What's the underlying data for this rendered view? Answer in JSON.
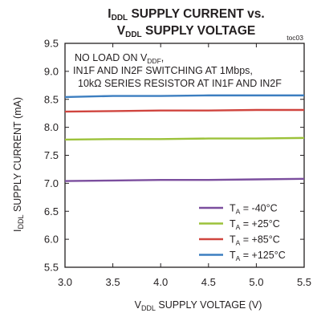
{
  "chart_data": {
    "type": "line",
    "title_line1": {
      "symbol": "I",
      "subscript": "DDL",
      "text": " SUPPLY CURRENT vs."
    },
    "title_line2": {
      "symbol": "V",
      "subscript": "DDL",
      "text": " SUPPLY VOLTAGE"
    },
    "figure_tag": "toc03",
    "xlabel": {
      "symbol": "V",
      "subscript": "DDL",
      "text": " SUPPLY VOLTAGE (V)"
    },
    "ylabel": {
      "symbol": "I",
      "subscript": "DDL",
      "text": " SUPPLY CURRENT (mA)"
    },
    "xlim": [
      3.0,
      5.5
    ],
    "ylim": [
      5.5,
      9.5
    ],
    "xticks": [
      3.0,
      3.5,
      4.0,
      4.5,
      5.0,
      5.5
    ],
    "xtick_labels": [
      "3.0",
      "3.5",
      "4.0",
      "4.5",
      "5.0",
      "5.5"
    ],
    "yticks": [
      5.5,
      6.0,
      6.5,
      7.0,
      7.5,
      8.0,
      8.5,
      9.0,
      9.5
    ],
    "ytick_labels": [
      "5.5",
      "6.0",
      "6.5",
      "7.0",
      "7.5",
      "8.0",
      "8.5",
      "9.0",
      "9.5"
    ],
    "grid": false,
    "legend_position": "bottom-right",
    "annotation": {
      "line1": {
        "text": "NO LOAD ON V",
        "subscript": "DDF",
        "suffix": ","
      },
      "line2": "IN1F AND IN2F SWITCHING AT 1Mbps,",
      "line3": {
        "prefix": "10k",
        "symbol": "Ω",
        "suffix": " SERIES RESISTOR AT IN1F AND IN2F"
      }
    },
    "x": [
      3.0,
      3.5,
      4.0,
      4.5,
      5.0,
      5.5
    ],
    "series": [
      {
        "name": "T",
        "subscript": "A",
        "label_value": " = -40°C",
        "color": "#7b4e9e",
        "values": [
          7.04,
          7.05,
          7.06,
          7.06,
          7.07,
          7.08
        ]
      },
      {
        "name": "T",
        "subscript": "A",
        "label_value": " = +25°C",
        "color": "#9cc23a",
        "values": [
          7.78,
          7.79,
          7.79,
          7.8,
          7.8,
          7.81
        ]
      },
      {
        "name": "T",
        "subscript": "A",
        "label_value": " = +85°C",
        "color": "#d0453f",
        "values": [
          8.28,
          8.29,
          8.3,
          8.3,
          8.31,
          8.31
        ]
      },
      {
        "name": "T",
        "subscript": "A",
        "label_value": " = +125°C",
        "color": "#3c7ec0",
        "values": [
          8.54,
          8.56,
          8.56,
          8.57,
          8.57,
          8.57
        ]
      }
    ]
  }
}
